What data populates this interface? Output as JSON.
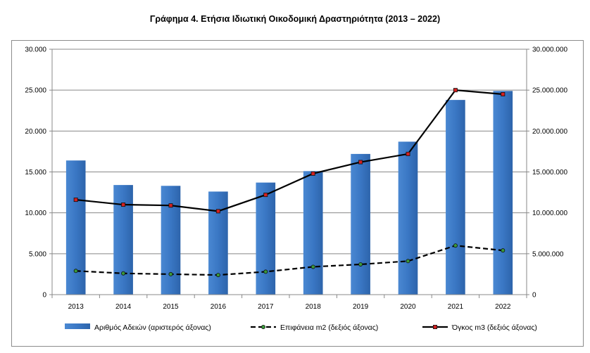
{
  "title": "Γράφημα 4. Ετήσια Ιδιωτική Οικοδομική Δραστηριότητα (2013 – 2022)",
  "chart_data": {
    "type": "bar",
    "title": "Γράφημα 4. Ετήσια Ιδιωτική Οικοδομική Δραστηριότητα (2013 – 2022)",
    "categories": [
      "2013",
      "2014",
      "2015",
      "2016",
      "2017",
      "2018",
      "2019",
      "2020",
      "2021",
      "2022"
    ],
    "left_axis": {
      "ylim": [
        0,
        30000
      ],
      "ticks": [
        0,
        5000,
        10000,
        15000,
        20000,
        25000,
        30000
      ],
      "tick_labels": [
        "0",
        "5.000",
        "10.000",
        "15.000",
        "20.000",
        "25.000",
        "30.000"
      ]
    },
    "right_axis": {
      "ylim": [
        0,
        30000000
      ],
      "ticks": [
        0,
        5000000,
        10000000,
        15000000,
        20000000,
        25000000,
        30000000
      ],
      "tick_labels": [
        "0",
        "5.000.000",
        "10.000.000",
        "15.000.000",
        "20.000.000",
        "25.000.000",
        "30.000.000"
      ]
    },
    "grid": true,
    "legend_position": "bottom",
    "series": [
      {
        "name": "Αριθμός Αδειών (αριστερός άξονας)",
        "type": "bar",
        "axis": "left",
        "color": "#3a77c4",
        "values": [
          16400,
          13400,
          13300,
          12600,
          13700,
          15100,
          17200,
          18700,
          23800,
          24900
        ]
      },
      {
        "name": "Επιφάνεια m2 (δεξιός άξονας)",
        "type": "line",
        "axis": "right",
        "color": "#000000",
        "dash": true,
        "marker_color": "#3a9a3a",
        "values": [
          2900000,
          2600000,
          2500000,
          2400000,
          2800000,
          3400000,
          3700000,
          4100000,
          6000000,
          5400000
        ]
      },
      {
        "name": "Όγκος m3 (δεξιός άξονας)",
        "type": "line",
        "axis": "right",
        "color": "#000000",
        "dash": false,
        "marker_color": "#d42020",
        "values": [
          11600000,
          11000000,
          10900000,
          10200000,
          12200000,
          14800000,
          16200000,
          17200000,
          25000000,
          24500000
        ]
      }
    ]
  }
}
